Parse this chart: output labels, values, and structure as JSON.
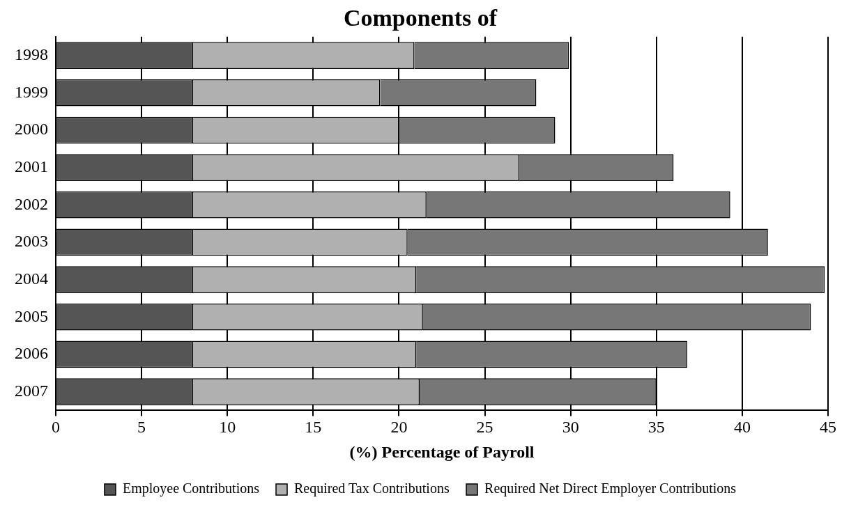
{
  "chart_data": {
    "type": "bar",
    "orientation": "horizontal",
    "stacked": true,
    "title": "Components of",
    "xlabel": "(%) Percentage of Payroll",
    "categories": [
      "1998",
      "1999",
      "2000",
      "2001",
      "2002",
      "2003",
      "2004",
      "2005",
      "2006",
      "2007"
    ],
    "series": [
      {
        "name": "Employee Contributions",
        "color": "#555555",
        "values": [
          8,
          8,
          8,
          8,
          8,
          8,
          8,
          8,
          8,
          8
        ]
      },
      {
        "name": "Required Tax Contributions",
        "color": "#b0b0b0",
        "values": [
          12.9,
          10.9,
          12.0,
          19.0,
          13.6,
          12.5,
          13.0,
          13.4,
          13.0,
          13.2
        ]
      },
      {
        "name": "Required Net Direct Employer Contributions",
        "color": "#777777",
        "values": [
          9.0,
          9.1,
          9.1,
          9.0,
          17.7,
          21.0,
          23.8,
          22.6,
          15.8,
          13.8
        ]
      }
    ],
    "xlim": [
      0,
      45
    ],
    "xticks": [
      0,
      5,
      10,
      15,
      20,
      25,
      30,
      35,
      40,
      45
    ],
    "grid": "x",
    "legend": "bottom"
  }
}
